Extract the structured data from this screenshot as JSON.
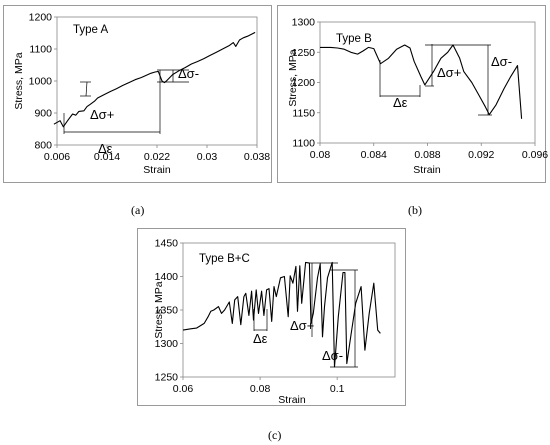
{
  "charts": [
    {
      "id": "A",
      "chart_data": {
        "type": "line",
        "title": "Type A",
        "xlabel": "Strain",
        "ylabel": "Stress, MPa",
        "xlim": [
          0.006,
          0.038
        ],
        "ylim": [
          800,
          1200
        ],
        "xticks": [
          "0.006",
          "0.014",
          "0.022",
          "0.03",
          "0.038"
        ],
        "yticks": [
          "800",
          "900",
          "1000",
          "1100",
          "1200"
        ],
        "grid": false,
        "series": [
          {
            "x": [
              0.0055,
              0.0065,
              0.007,
              0.0078,
              0.0085,
              0.009,
              0.0095,
              0.0103,
              0.0108,
              0.0113,
              0.012,
              0.0125,
              0.0135,
              0.0145,
              0.0155,
              0.0165,
              0.0175,
              0.0185,
              0.0195,
              0.0203,
              0.021,
              0.0217,
              0.0222,
              0.0228,
              0.0232,
              0.0236,
              0.0245,
              0.0255,
              0.0265,
              0.0275,
              0.0285,
              0.0295,
              0.0305,
              0.0315,
              0.0325,
              0.0335,
              0.0342,
              0.0346,
              0.0352,
              0.0358,
              0.0365,
              0.0372,
              0.0377
            ],
            "y": [
              865,
              876,
              857,
              879,
              897,
              893,
              905,
              907,
              920,
              927,
              937,
              947,
              957,
              967,
              976,
              986,
              995,
              1004,
              1011,
              1018,
              1024,
              1028,
              1030,
              1000,
              995,
              1002,
              1020,
              1032,
              1042,
              1053,
              1061,
              1070,
              1080,
              1090,
              1100,
              1110,
              1120,
              1108,
              1128,
              1135,
              1140,
              1147,
              1152
            ]
          }
        ],
        "annotations": [
          "Δσ+",
          "Δε",
          "Δσ-"
        ]
      }
    },
    {
      "id": "B",
      "chart_data": {
        "type": "line",
        "title": "Type  B",
        "xlabel": "Strain",
        "ylabel": "Stress, MPa",
        "xlim": [
          0.08,
          0.096
        ],
        "ylim": [
          1100,
          1300
        ],
        "xticks": [
          "0.08",
          "0.084",
          "0.088",
          "0.092",
          "0.096"
        ],
        "yticks": [
          "1100",
          "1150",
          "1200",
          "1250",
          "1300"
        ],
        "grid": false,
        "series": [
          {
            "x": [
              0.08,
              0.0808,
              0.0813,
              0.0818,
              0.0823,
              0.0828,
              0.0832,
              0.0836,
              0.084,
              0.0845,
              0.0851,
              0.0857,
              0.0863,
              0.0867,
              0.087,
              0.0875,
              0.0878,
              0.0885,
              0.089,
              0.0895,
              0.0899,
              0.0904,
              0.0907,
              0.0913,
              0.0918,
              0.0923,
              0.0926,
              0.0931,
              0.0937,
              0.0942,
              0.0947,
              0.095
            ],
            "y": [
              1258,
              1258,
              1257,
              1255,
              1250,
              1247,
              1252,
              1258,
              1256,
              1231,
              1240,
              1255,
              1262,
              1257,
              1235,
              1210,
              1196,
              1220,
              1240,
              1250,
              1262,
              1240,
              1218,
              1200,
              1180,
              1160,
              1147,
              1163,
              1190,
              1210,
              1228,
              1140
            ]
          }
        ],
        "annotations": [
          "Δε",
          "Δσ+",
          "Δσ-"
        ]
      }
    },
    {
      "id": "C",
      "chart_data": {
        "type": "line",
        "title": "Type B+C",
        "xlabel": "Strain",
        "ylabel": "Stress, MPa",
        "xlim": [
          0.06,
          0.115
        ],
        "ylim": [
          1250,
          1450
        ],
        "xticks": [
          "0.06",
          "0.08",
          "0.1"
        ],
        "yticks": [
          "1250",
          "1300",
          "1350",
          "1400",
          "1450"
        ],
        "grid": false,
        "series": [
          {
            "x": [
              0.06,
              0.062,
              0.0635,
              0.0655,
              0.0665,
              0.0672,
              0.068,
              0.0692,
              0.07,
              0.0708,
              0.072,
              0.0728,
              0.0734,
              0.0742,
              0.075,
              0.0758,
              0.0763,
              0.0771,
              0.0778,
              0.0783,
              0.079,
              0.0796,
              0.0804,
              0.081,
              0.0817,
              0.0823,
              0.083,
              0.0836,
              0.0842,
              0.0853,
              0.0863,
              0.0873,
              0.0878,
              0.0885,
              0.0893,
              0.0897,
              0.0903,
              0.0908,
              0.0918,
              0.0928,
              0.0932,
              0.0938,
              0.0949,
              0.0956,
              0.0962,
              0.0967,
              0.0975,
              0.0987,
              0.0993,
              0.1003,
              0.1015,
              0.102,
              0.1025,
              0.1035,
              0.1048,
              0.1062,
              0.1072,
              0.1083,
              0.1095,
              0.1105,
              0.1112
            ],
            "y": [
              1320,
              1322,
              1323,
              1330,
              1340,
              1348,
              1350,
              1355,
              1345,
              1350,
              1362,
              1330,
              1365,
              1370,
              1328,
              1370,
              1375,
              1342,
              1378,
              1335,
              1380,
              1345,
              1378,
              1342,
              1380,
              1382,
              1333,
              1385,
              1370,
              1398,
              1400,
              1340,
              1401,
              1390,
              1415,
              1348,
              1416,
              1360,
              1421,
              1420,
              1330,
              1345,
              1398,
              1419,
              1310,
              1355,
              1398,
              1421,
              1265,
              1340,
              1406,
              1406,
              1270,
              1310,
              1360,
              1385,
              1290,
              1345,
              1390,
              1320,
              1315
            ]
          }
        ],
        "annotations": [
          "Δε",
          "Δσ+",
          "Δσ-"
        ]
      }
    }
  ],
  "captions": [
    "(a)",
    "(b)",
    "(c)"
  ]
}
